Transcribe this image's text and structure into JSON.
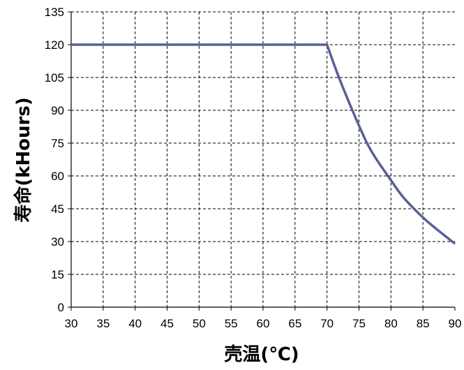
{
  "chart_data": {
    "type": "line",
    "title": "",
    "xlabel": "壳温(℃)",
    "ylabel": "寿命(kHours)",
    "xlim": [
      30,
      90
    ],
    "ylim": [
      0,
      135
    ],
    "x_ticks": [
      "30",
      "35",
      "40",
      "45",
      "50",
      "55",
      "60",
      "65",
      "70",
      "75",
      "80",
      "85",
      "90"
    ],
    "y_ticks": [
      "0",
      "15",
      "30",
      "45",
      "60",
      "75",
      "90",
      "105",
      "120",
      "135"
    ],
    "grid": true,
    "grid_style": "dashed",
    "series": [
      {
        "color": "#5a5f97",
        "x": [
          30,
          70,
          72,
          75,
          77,
          80,
          82,
          85,
          87,
          90
        ],
        "y": [
          120,
          120,
          104,
          83,
          71,
          58,
          50,
          41,
          36,
          29
        ]
      }
    ]
  }
}
